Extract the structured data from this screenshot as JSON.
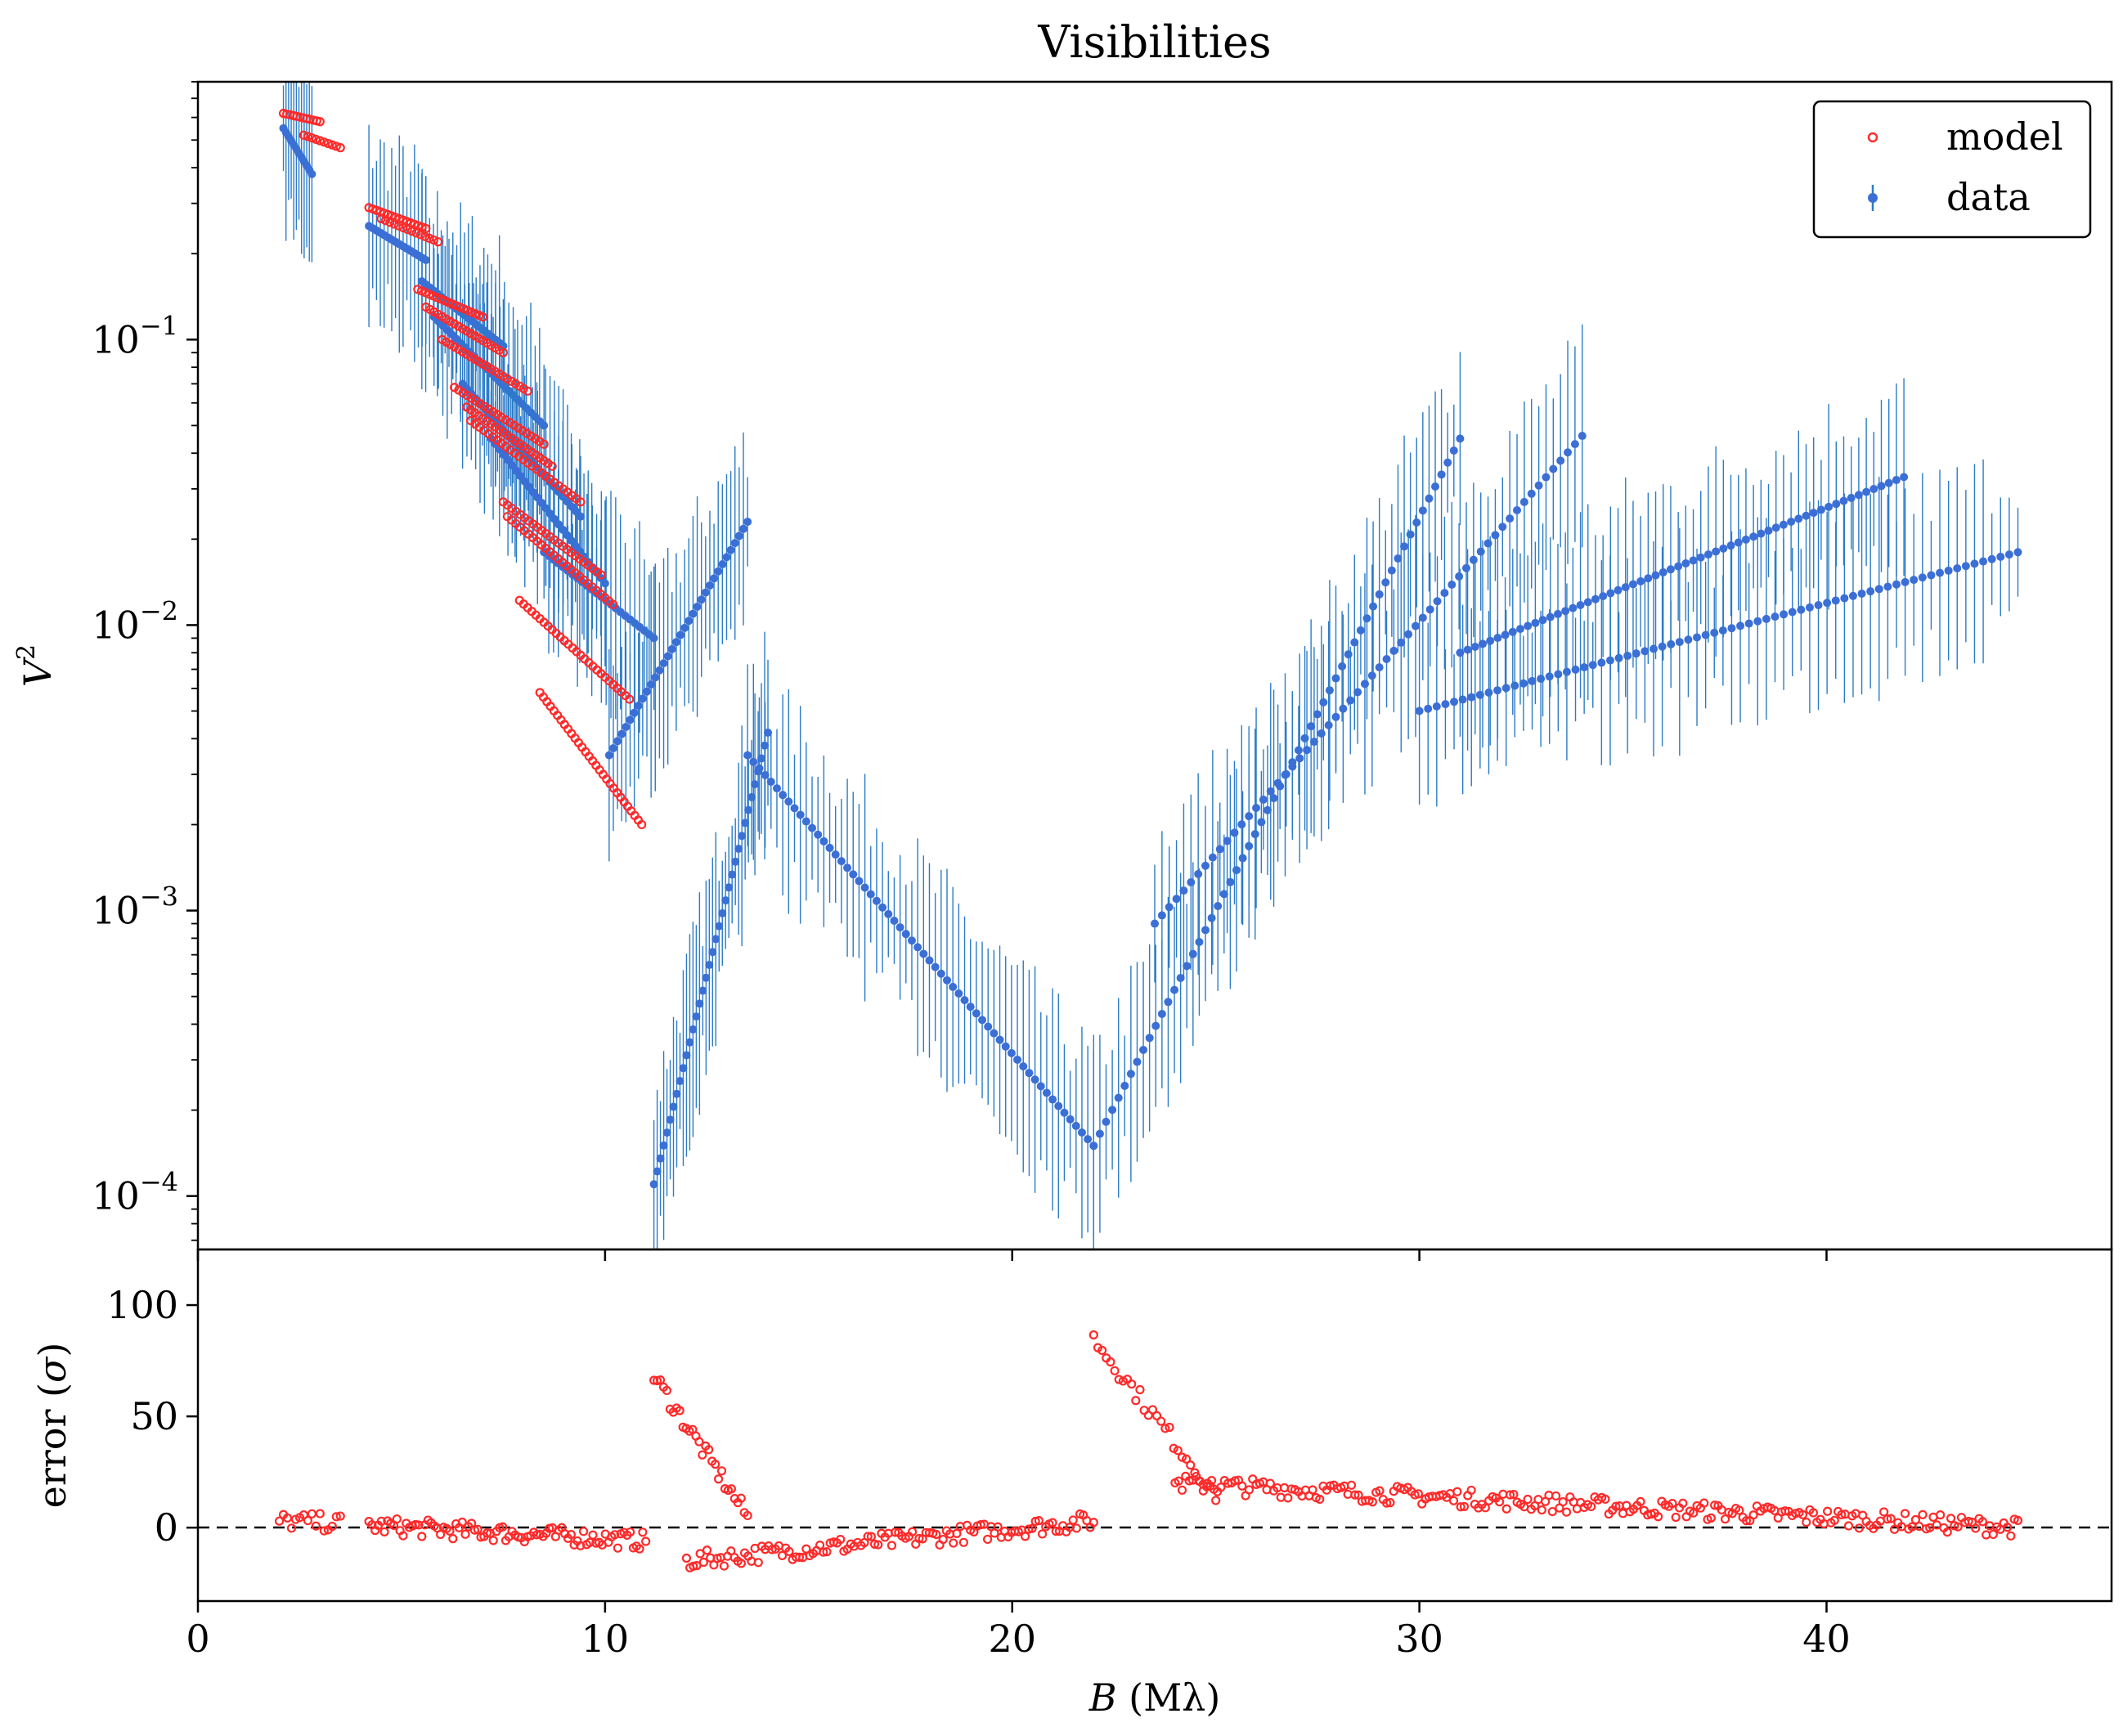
{
  "chart_data": {
    "type": "scatter",
    "title": "Visibilities",
    "xlabel_var": "B",
    "xlabel_unit": " (Mλ)",
    "ylabel_var": "V",
    "ylabel_sup": "2",
    "resid_ylabel_pre": "error (",
    "resid_ylabel_var": "σ",
    "resid_ylabel_post": ")",
    "xlim": [
      0,
      47
    ],
    "ylim_top": [
      6.5e-05,
      0.8
    ],
    "yscale_top": "log",
    "ylim_bottom": [
      -33,
      125
    ],
    "x_ticks": [
      0,
      10,
      20,
      30,
      40
    ],
    "y_ticks_top": [
      {
        "base": "10",
        "exp": "−1",
        "value": 0.1
      },
      {
        "base": "10",
        "exp": "−2",
        "value": 0.01
      },
      {
        "base": "10",
        "exp": "−3",
        "value": 0.001
      },
      {
        "base": "10",
        "exp": "−4",
        "value": 0.0001
      }
    ],
    "y_ticks_bottom": [
      100,
      50,
      0
    ],
    "legend": {
      "placement": "upper-right",
      "entries": [
        "model",
        "data"
      ]
    },
    "colors": {
      "model": "#ff2a2a",
      "data": "#3b6fd6",
      "errorbar": "#2b7bc8",
      "zero_line": "#000000"
    },
    "series": [
      {
        "name": "model",
        "role": "V2 model",
        "clusters": [
          {
            "x0": 2.1,
            "x1": 3.0,
            "y0": 0.62,
            "y1": 0.58,
            "n": 12
          },
          {
            "x0": 2.6,
            "x1": 3.5,
            "y0": 0.52,
            "y1": 0.47,
            "n": 10
          },
          {
            "x0": 4.2,
            "x1": 5.6,
            "y0": 0.29,
            "y1": 0.245,
            "n": 16
          },
          {
            "x0": 4.5,
            "x1": 5.9,
            "y0": 0.265,
            "y1": 0.22,
            "n": 14
          },
          {
            "x0": 5.4,
            "x1": 7.0,
            "y0": 0.15,
            "y1": 0.12,
            "n": 18
          },
          {
            "x0": 5.6,
            "x1": 7.5,
            "y0": 0.13,
            "y1": 0.09,
            "n": 20
          },
          {
            "x0": 6.0,
            "x1": 8.1,
            "y0": 0.1,
            "y1": 0.066,
            "n": 22
          },
          {
            "x0": 6.3,
            "x1": 8.5,
            "y0": 0.068,
            "y1": 0.043,
            "n": 22
          },
          {
            "x0": 6.6,
            "x1": 8.7,
            "y0": 0.058,
            "y1": 0.036,
            "n": 22
          },
          {
            "x0": 6.7,
            "x1": 9.4,
            "y0": 0.052,
            "y1": 0.027,
            "n": 26
          },
          {
            "x0": 7.5,
            "x1": 9.9,
            "y0": 0.027,
            "y1": 0.015,
            "n": 24
          },
          {
            "x0": 7.6,
            "x1": 10.2,
            "y0": 0.024,
            "y1": 0.0118,
            "n": 26
          },
          {
            "x0": 7.9,
            "x1": 10.6,
            "y0": 0.0122,
            "y1": 0.0055,
            "n": 28
          },
          {
            "x0": 8.4,
            "x1": 10.9,
            "y0": 0.0058,
            "y1": 0.002,
            "n": 30
          }
        ]
      },
      {
        "name": "data",
        "role": "V2 measurements with error bars",
        "clusters": [
          {
            "x0": 2.1,
            "x1": 2.8,
            "y0": 0.55,
            "y1": 0.38,
            "n": 12
          },
          {
            "x0": 4.2,
            "x1": 5.6,
            "y0": 0.25,
            "y1": 0.19,
            "n": 16
          },
          {
            "x0": 5.5,
            "x1": 7.5,
            "y0": 0.16,
            "y1": 0.095,
            "n": 22
          },
          {
            "x0": 5.8,
            "x1": 8.5,
            "y0": 0.12,
            "y1": 0.05,
            "n": 26
          },
          {
            "x0": 6.5,
            "x1": 9.4,
            "y0": 0.07,
            "y1": 0.024,
            "n": 28
          },
          {
            "x0": 7.2,
            "x1": 10.0,
            "y0": 0.045,
            "y1": 0.014,
            "n": 28
          },
          {
            "x0": 8.5,
            "x1": 11.2,
            "y0": 0.018,
            "y1": 0.009,
            "n": 24
          },
          {
            "x0": 10.1,
            "x1": 13.5,
            "y0": 0.0035,
            "y1": 0.023,
            "n": 34
          },
          {
            "x0": 11.2,
            "x1": 14.0,
            "y0": 0.00011,
            "y1": 0.0042,
            "n": 36
          },
          {
            "x0": 13.5,
            "x1": 22.0,
            "y0": 0.0035,
            "y1": 0.00015,
            "n": 60
          },
          {
            "x0": 22.0,
            "x1": 31.0,
            "y0": 0.00015,
            "y1": 0.045,
            "n": 60
          },
          {
            "x0": 23.5,
            "x1": 34.0,
            "y0": 0.0009,
            "y1": 0.046,
            "n": 60
          },
          {
            "x0": 30.0,
            "x1": 44.7,
            "y0": 0.005,
            "y1": 0.018,
            "n": 70
          },
          {
            "x0": 31.0,
            "x1": 41.9,
            "y0": 0.008,
            "y1": 0.033,
            "n": 60
          }
        ]
      },
      {
        "name": "model",
        "role": "residuals (sigma)",
        "clusters": [
          {
            "x0": 2.0,
            "x1": 3.5,
            "y0": 3,
            "y1": 2,
            "n": 16
          },
          {
            "x0": 4.2,
            "x1": 11.0,
            "y0": 1,
            "y1": -6,
            "n": 90
          },
          {
            "x0": 11.2,
            "x1": 13.5,
            "y0": 68,
            "y1": 5,
            "n": 30
          },
          {
            "x0": 12.0,
            "x1": 22.0,
            "y0": -15,
            "y1": 3,
            "n": 120
          },
          {
            "x0": 22.0,
            "x1": 25.0,
            "y0": 85,
            "y1": 15,
            "n": 30
          },
          {
            "x0": 24.0,
            "x1": 44.7,
            "y0": 20,
            "y1": 0,
            "n": 240
          }
        ]
      }
    ]
  }
}
